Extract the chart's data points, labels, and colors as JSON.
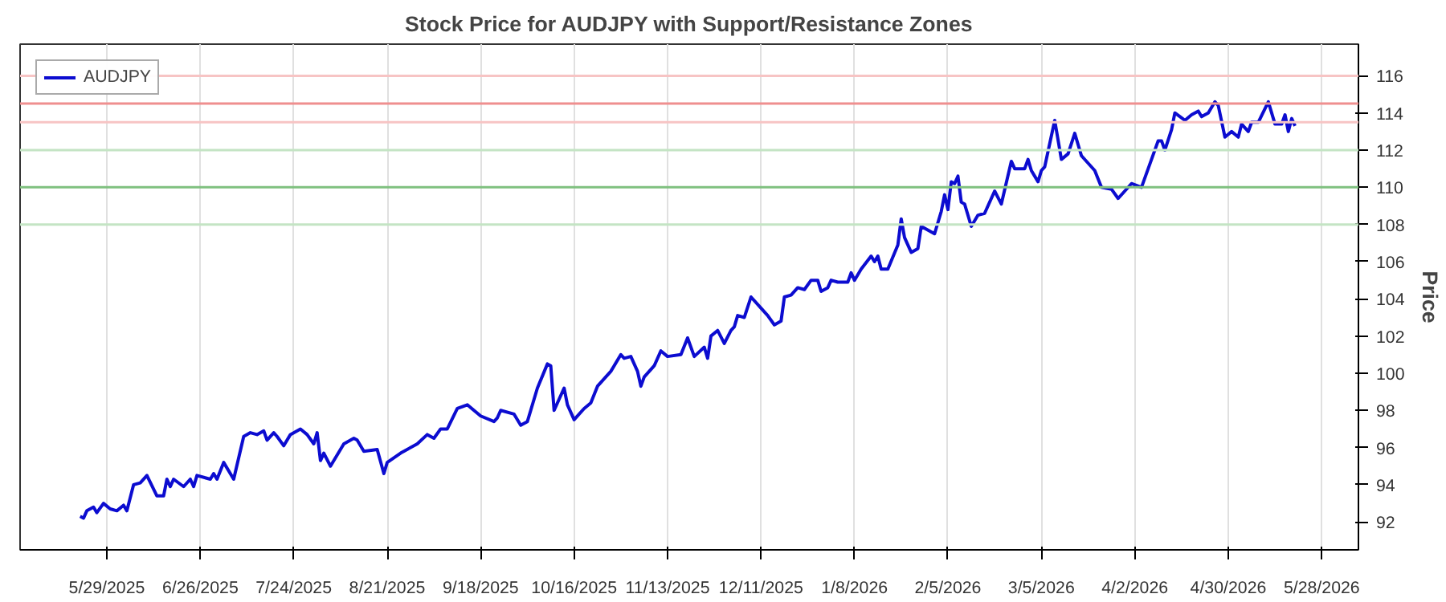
{
  "chart_data": {
    "type": "line",
    "title": "Stock Price for AUDJPY with Support/Resistance Zones",
    "ylabel": "Price",
    "xlim": [
      "2025-05-03",
      "2026-06-08"
    ],
    "ylim": [
      90.5,
      117.7
    ],
    "xticks": [
      {
        "value": "2025-05-29",
        "label": "5/29/2025"
      },
      {
        "value": "2025-06-26",
        "label": "6/26/2025"
      },
      {
        "value": "2025-07-24",
        "label": "7/24/2025"
      },
      {
        "value": "2025-08-21",
        "label": "8/21/2025"
      },
      {
        "value": "2025-09-18",
        "label": "9/18/2025"
      },
      {
        "value": "2025-10-16",
        "label": "10/16/2025"
      },
      {
        "value": "2025-11-13",
        "label": "11/13/2025"
      },
      {
        "value": "2025-12-11",
        "label": "12/11/2025"
      },
      {
        "value": "2026-01-08",
        "label": "1/8/2026"
      },
      {
        "value": "2026-02-05",
        "label": "2/5/2026"
      },
      {
        "value": "2026-03-05",
        "label": "3/5/2026"
      },
      {
        "value": "2026-04-02",
        "label": "4/2/2026"
      },
      {
        "value": "2026-04-30",
        "label": "4/30/2026"
      },
      {
        "value": "2026-05-28",
        "label": "5/28/2026"
      }
    ],
    "yticks": [
      92,
      94,
      96,
      98,
      100,
      102,
      104,
      106,
      108,
      110,
      112,
      114,
      116
    ],
    "grid": "x",
    "legend": "top left",
    "line_style": "solid",
    "marker": "none",
    "ref_lines": [
      {
        "axis": "y",
        "value": 116,
        "color": "#f7c4c4"
      },
      {
        "axis": "y",
        "value": 114.5,
        "color": "#ef8f8f"
      },
      {
        "axis": "y",
        "value": 113.5,
        "color": "#f7c4c4"
      },
      {
        "axis": "y",
        "value": 112,
        "color": "#c4e4c4"
      },
      {
        "axis": "y",
        "value": 110,
        "color": "#7fc07f"
      },
      {
        "axis": "y",
        "value": 108,
        "color": "#c4e4c4"
      }
    ],
    "series": [
      {
        "name": "AUDJPY",
        "color": "#0c0cd0",
        "x": [
          "2025-05-21",
          "2025-05-22",
          "2025-05-23",
          "2025-05-25",
          "2025-05-26",
          "2025-05-28",
          "2025-05-30",
          "2025-06-01",
          "2025-06-03",
          "2025-06-04",
          "2025-06-06",
          "2025-06-08",
          "2025-06-10",
          "2025-06-13",
          "2025-06-15",
          "2025-06-16",
          "2025-06-17",
          "2025-06-18",
          "2025-06-21",
          "2025-06-23",
          "2025-06-24",
          "2025-06-25",
          "2025-06-29",
          "2025-06-30",
          "2025-07-01",
          "2025-07-03",
          "2025-07-06",
          "2025-07-09",
          "2025-07-11",
          "2025-07-13",
          "2025-07-15",
          "2025-07-16",
          "2025-07-18",
          "2025-07-19",
          "2025-07-21",
          "2025-07-23",
          "2025-07-26",
          "2025-07-28",
          "2025-07-30",
          "2025-07-31",
          "2025-08-01",
          "2025-08-02",
          "2025-08-04",
          "2025-08-08",
          "2025-08-11",
          "2025-08-12",
          "2025-08-14",
          "2025-08-18",
          "2025-08-20",
          "2025-08-21",
          "2025-08-25",
          "2025-08-30",
          "2025-09-02",
          "2025-09-04",
          "2025-09-06",
          "2025-09-08",
          "2025-09-11",
          "2025-09-14",
          "2025-09-18",
          "2025-09-22",
          "2025-09-23",
          "2025-09-24",
          "2025-09-28",
          "2025-09-30",
          "2025-10-02",
          "2025-10-05",
          "2025-10-08",
          "2025-10-09",
          "2025-10-10",
          "2025-10-13",
          "2025-10-14",
          "2025-10-16",
          "2025-10-19",
          "2025-10-21",
          "2025-10-23",
          "2025-10-27",
          "2025-10-30",
          "2025-10-31",
          "2025-11-02",
          "2025-11-04",
          "2025-11-05",
          "2025-11-06",
          "2025-11-09",
          "2025-11-11",
          "2025-11-13",
          "2025-11-17",
          "2025-11-19",
          "2025-11-21",
          "2025-11-24",
          "2025-11-25",
          "2025-11-26",
          "2025-11-28",
          "2025-11-30",
          "2025-12-02",
          "2025-12-03",
          "2025-12-04",
          "2025-12-06",
          "2025-12-08",
          "2025-12-11",
          "2025-12-13",
          "2025-12-15",
          "2025-12-17",
          "2025-12-18",
          "2025-12-20",
          "2025-12-22",
          "2025-12-24",
          "2025-12-26",
          "2025-12-28",
          "2025-12-29",
          "2025-12-31",
          "2026-01-01",
          "2026-01-03",
          "2026-01-06",
          "2026-01-07",
          "2026-01-08",
          "2026-01-10",
          "2026-01-13",
          "2026-01-14",
          "2026-01-15",
          "2026-01-16",
          "2026-01-18",
          "2026-01-21",
          "2026-01-22",
          "2026-01-23",
          "2026-01-25",
          "2026-01-27",
          "2026-01-28",
          "2026-02-01",
          "2026-02-03",
          "2026-02-04",
          "2026-02-05",
          "2026-02-06",
          "2026-02-07",
          "2026-02-08",
          "2026-02-09",
          "2026-02-10",
          "2026-02-12",
          "2026-02-14",
          "2026-02-16",
          "2026-02-19",
          "2026-02-21",
          "2026-02-24",
          "2026-02-25",
          "2026-02-28",
          "2026-03-01",
          "2026-03-02",
          "2026-03-04",
          "2026-03-05",
          "2026-03-06",
          "2026-03-09",
          "2026-03-11",
          "2026-03-13",
          "2026-03-15",
          "2026-03-17",
          "2026-03-21",
          "2026-03-23",
          "2026-03-26",
          "2026-03-28",
          "2026-04-01",
          "2026-04-04",
          "2026-04-07",
          "2026-04-09",
          "2026-04-10",
          "2026-04-11",
          "2026-04-13",
          "2026-04-14",
          "2026-04-17",
          "2026-04-19",
          "2026-04-21",
          "2026-04-22",
          "2026-04-24",
          "2026-04-26",
          "2026-04-27",
          "2026-04-29",
          "2026-05-01",
          "2026-05-03",
          "2026-05-04",
          "2026-05-06",
          "2026-05-07",
          "2026-05-09",
          "2026-05-12",
          "2026-05-14",
          "2026-05-16",
          "2026-05-17",
          "2026-05-18",
          "2026-05-19",
          "2026-05-20"
        ],
        "values": [
          92.3,
          92.2,
          92.6,
          92.8,
          92.5,
          93.0,
          92.7,
          92.6,
          92.9,
          92.6,
          94.0,
          94.1,
          94.5,
          93.4,
          93.4,
          94.3,
          93.9,
          94.3,
          93.9,
          94.3,
          93.9,
          94.5,
          94.3,
          94.6,
          94.3,
          95.2,
          94.3,
          96.6,
          96.8,
          96.7,
          96.9,
          96.4,
          96.8,
          96.6,
          96.1,
          96.7,
          97.0,
          96.7,
          96.2,
          96.8,
          95.3,
          95.7,
          95.0,
          96.2,
          96.5,
          96.4,
          95.8,
          95.9,
          94.6,
          95.2,
          95.7,
          96.2,
          96.7,
          96.5,
          97.0,
          97.0,
          98.1,
          98.3,
          97.7,
          97.4,
          97.6,
          98.0,
          97.8,
          97.2,
          97.4,
          99.2,
          100.5,
          100.4,
          98.0,
          99.2,
          98.3,
          97.5,
          98.1,
          98.4,
          99.3,
          100.1,
          101.0,
          100.8,
          100.9,
          100.1,
          99.3,
          99.8,
          100.4,
          101.2,
          100.9,
          101.0,
          101.9,
          100.9,
          101.4,
          100.8,
          102.0,
          102.3,
          101.6,
          102.3,
          102.5,
          103.1,
          103.0,
          104.1,
          103.5,
          103.1,
          102.6,
          102.8,
          104.1,
          104.2,
          104.6,
          104.5,
          105.0,
          105.0,
          104.4,
          104.6,
          105.0,
          104.9,
          104.9,
          105.4,
          105.0,
          105.6,
          106.3,
          106.0,
          106.3,
          105.6,
          105.6,
          106.9,
          108.3,
          107.3,
          106.5,
          106.7,
          107.9,
          107.5,
          108.7,
          109.6,
          108.8,
          110.3,
          110.2,
          110.6,
          109.2,
          109.1,
          107.9,
          108.5,
          108.6,
          109.8,
          109.1,
          111.4,
          111.0,
          111.0,
          111.5,
          110.9,
          110.3,
          110.9,
          111.1,
          113.6,
          111.5,
          111.8,
          112.9,
          111.7,
          110.9,
          110.0,
          109.9,
          109.4,
          110.2,
          110.0,
          111.5,
          112.5,
          112.5,
          112.0,
          113.1,
          114.0,
          113.6,
          113.9,
          114.1,
          113.8,
          114.0,
          114.6,
          114.4,
          112.7,
          113.0,
          112.7,
          113.4,
          113.0,
          113.5,
          113.5,
          114.6,
          113.4,
          113.4,
          113.9,
          113.0,
          113.7,
          113.3
        ]
      }
    ]
  }
}
